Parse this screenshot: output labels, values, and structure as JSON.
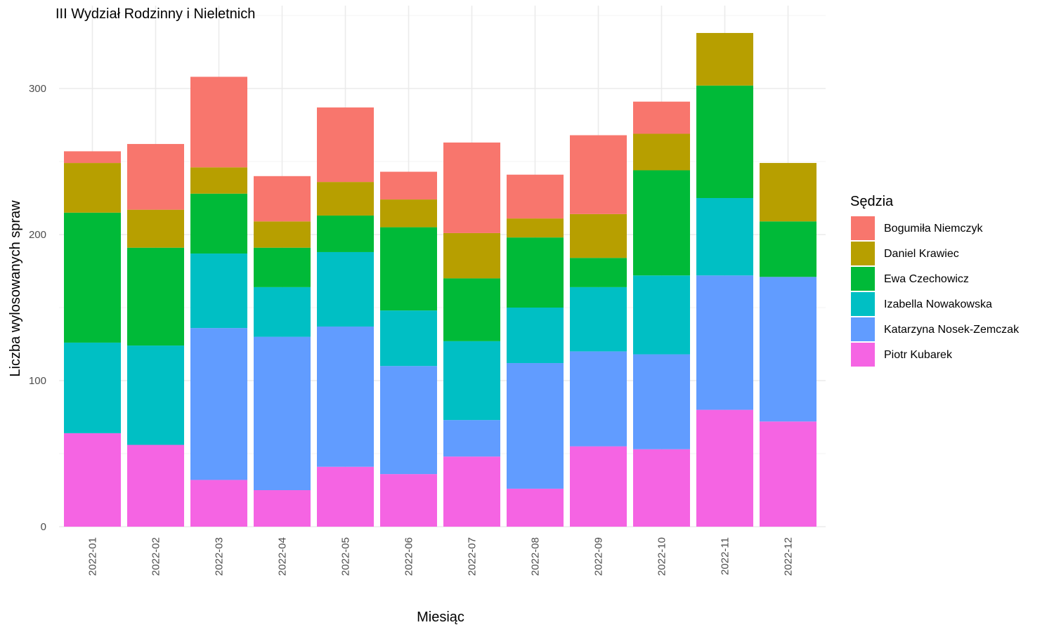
{
  "chart_data": {
    "type": "bar",
    "stacked": true,
    "title": "III Wydział Rodzinny i Nieletnich",
    "xlabel": "Miesiąc",
    "ylabel": "Liczba wylosowanych spraw",
    "ylim": [
      0,
      345
    ],
    "yticks": [
      0,
      100,
      200,
      300
    ],
    "grid": true,
    "legend_position": "right",
    "legend_title": "Sędzia",
    "categories": [
      "2022-01",
      "2022-02",
      "2022-03",
      "2022-04",
      "2022-05",
      "2022-06",
      "2022-07",
      "2022-08",
      "2022-09",
      "2022-10",
      "2022-11",
      "2022-12"
    ],
    "series": [
      {
        "name": "Piotr Kubarek",
        "color": "#F564E3",
        "values": [
          64,
          56,
          32,
          25,
          41,
          36,
          48,
          26,
          55,
          53,
          80,
          72
        ]
      },
      {
        "name": "Katarzyna Nosek-Zemczak",
        "color": "#619CFF",
        "values": [
          0,
          0,
          104,
          105,
          96,
          74,
          25,
          86,
          65,
          65,
          92,
          99
        ]
      },
      {
        "name": "Izabella Nowakowska",
        "color": "#00BFC4",
        "values": [
          62,
          68,
          51,
          34,
          51,
          38,
          54,
          38,
          44,
          54,
          53,
          0
        ]
      },
      {
        "name": "Ewa Czechowicz",
        "color": "#00BA38",
        "values": [
          89,
          67,
          41,
          27,
          25,
          57,
          43,
          48,
          20,
          72,
          77,
          38
        ]
      },
      {
        "name": "Daniel Krawiec",
        "color": "#B79F00",
        "values": [
          34,
          26,
          18,
          18,
          23,
          19,
          31,
          13,
          30,
          25,
          36,
          40
        ]
      },
      {
        "name": "Bogumiła Niemczyk",
        "color": "#F8766D",
        "values": [
          8,
          45,
          62,
          31,
          51,
          19,
          62,
          30,
          54,
          22,
          0,
          0
        ]
      }
    ],
    "legend_order": [
      "Bogumiła Niemczyk",
      "Daniel Krawiec",
      "Ewa Czechowicz",
      "Izabella Nowakowska",
      "Katarzyna Nosek-Zemczak",
      "Piotr Kubarek"
    ]
  }
}
